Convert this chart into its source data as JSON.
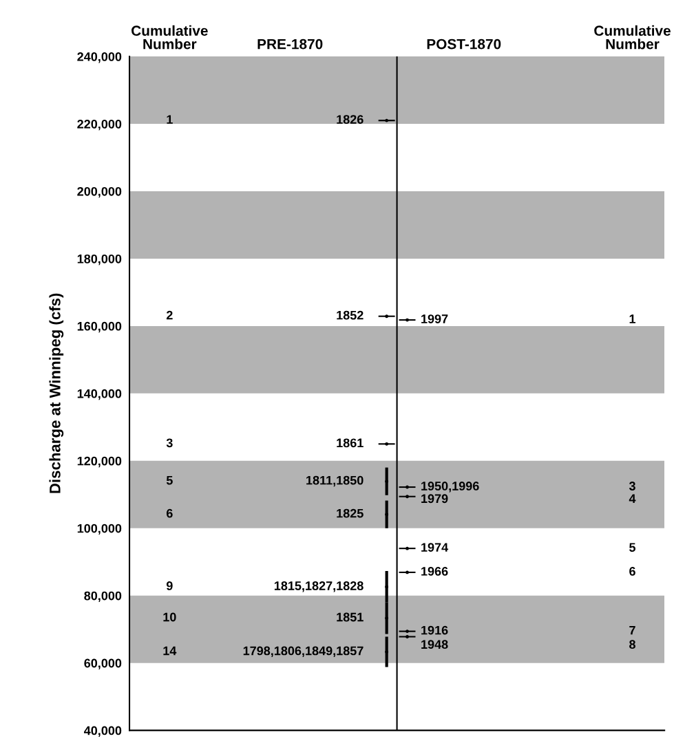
{
  "chart_data": {
    "type": "scatter",
    "ylabel": "Discharge at Winnipeg (cfs)",
    "categories": [
      null,
      null,
      null,
      null,
      null,
      null,
      null,
      null,
      null,
      null,
      null,
      null,
      null,
      null,
      null,
      null,
      null,
      null,
      null,
      null,
      null,
      null,
      null,
      null,
      null,
      null
    ],
    "ylim": [
      40000,
      240000
    ],
    "yticks": [
      {
        "value": 40000,
        "label": "40,000"
      },
      {
        "value": 60000,
        "label": "60,000"
      },
      {
        "value": 80000,
        "label": "80,000"
      },
      {
        "value": 100000,
        "label": "100,000"
      },
      {
        "value": 120000,
        "label": "120,000"
      },
      {
        "value": 140000,
        "label": "140,000"
      },
      {
        "value": 160000,
        "label": "160,000"
      },
      {
        "value": 180000,
        "label": "180,000"
      },
      {
        "value": 200000,
        "label": "200,000"
      },
      {
        "value": 220000,
        "label": "220,000"
      },
      {
        "value": 240000,
        "label": "240,000"
      }
    ],
    "bands": [
      {
        "axis": "y",
        "from": 220000,
        "to": 240000,
        "color": "#b3b3b3"
      },
      {
        "axis": "y",
        "from": 180000,
        "to": 200000,
        "color": "#b3b3b3"
      },
      {
        "axis": "y",
        "from": 140000,
        "to": 160000,
        "color": "#b3b3b3"
      },
      {
        "axis": "y",
        "from": 100000,
        "to": 120000,
        "color": "#b3b3b3"
      },
      {
        "axis": "y",
        "from": 60000,
        "to": 80000,
        "color": "#b3b3b3"
      }
    ],
    "grid": false,
    "series": [
      {
        "color": "#000000",
        "values": [
          null,
          null,
          null,
          null,
          null,
          null,
          null,
          null,
          null,
          null,
          null,
          null,
          221000,
          161800,
          null,
          null,
          null,
          null,
          null,
          null,
          null,
          null,
          null,
          null,
          null,
          null
        ]
      },
      {
        "color": "#000000",
        "values": [
          null,
          null,
          null,
          null,
          null,
          null,
          null,
          null,
          null,
          null,
          null,
          null,
          162900,
          112200,
          null,
          null,
          null,
          null,
          null,
          null,
          null,
          null,
          null,
          null,
          null,
          null
        ]
      },
      {
        "color": "#000000",
        "values": [
          null,
          null,
          null,
          null,
          null,
          null,
          null,
          null,
          null,
          null,
          null,
          null,
          125000,
          109400,
          null,
          null,
          null,
          null,
          null,
          null,
          null,
          null,
          null,
          null,
          null,
          null
        ]
      },
      {
        "color": "#000000",
        "values": [
          null,
          null,
          null,
          null,
          null,
          null,
          null,
          null,
          null,
          null,
          null,
          null,
          113900,
          94000,
          null,
          null,
          null,
          null,
          null,
          null,
          null,
          null,
          null,
          null,
          null,
          null
        ],
        "errors": [
          null,
          null,
          null,
          null,
          null,
          null,
          null,
          null,
          null,
          null,
          null,
          null,
          [
            109800,
            118000
          ],
          null,
          null,
          null,
          null,
          null,
          null,
          null,
          null,
          null,
          null,
          null,
          null,
          null
        ]
      },
      {
        "color": "#000000",
        "values": [
          null,
          null,
          null,
          null,
          null,
          null,
          null,
          null,
          null,
          null,
          null,
          null,
          104100,
          86900,
          null,
          null,
          null,
          null,
          null,
          null,
          null,
          null,
          null,
          null,
          null,
          null
        ],
        "errors": [
          null,
          null,
          null,
          null,
          null,
          null,
          null,
          null,
          null,
          null,
          null,
          null,
          [
            100000,
            108200
          ],
          null,
          null,
          null,
          null,
          null,
          null,
          null,
          null,
          null,
          null,
          null,
          null,
          null
        ]
      },
      {
        "color": "#000000",
        "values": [
          null,
          null,
          null,
          null,
          null,
          null,
          null,
          null,
          null,
          null,
          null,
          null,
          82600,
          69400,
          null,
          null,
          null,
          null,
          null,
          null,
          null,
          null,
          null,
          null,
          null,
          null
        ],
        "errors": [
          null,
          null,
          null,
          null,
          null,
          null,
          null,
          null,
          null,
          null,
          null,
          null,
          [
            78000,
            87300
          ],
          null,
          null,
          null,
          null,
          null,
          null,
          null,
          null,
          null,
          null,
          null,
          null,
          null
        ]
      },
      {
        "color": "#000000",
        "values": [
          null,
          null,
          null,
          null,
          null,
          null,
          null,
          null,
          null,
          null,
          null,
          null,
          73300,
          67800,
          null,
          null,
          null,
          null,
          null,
          null,
          null,
          null,
          null,
          null,
          null,
          null
        ],
        "errors": [
          null,
          null,
          null,
          null,
          null,
          null,
          null,
          null,
          null,
          null,
          null,
          null,
          [
            68600,
            78000
          ],
          null,
          null,
          null,
          null,
          null,
          null,
          null,
          null,
          null,
          null,
          null,
          null,
          null
        ]
      },
      {
        "color": "#000000",
        "values": [
          null,
          null,
          null,
          null,
          null,
          null,
          null,
          null,
          null,
          null,
          null,
          null,
          63300,
          null,
          null,
          null,
          null,
          null,
          null,
          null,
          null,
          null,
          null,
          null,
          null,
          null
        ],
        "errors": [
          null,
          null,
          null,
          null,
          null,
          null,
          null,
          null,
          null,
          null,
          null,
          null,
          [
            58800,
            67800
          ],
          null,
          null,
          null,
          null,
          null,
          null,
          null,
          null,
          null,
          null,
          null,
          null,
          null
        ]
      }
    ],
    "annotations": [
      "Cumulative\nNumber",
      "PRE-1870",
      "POST-1870",
      "Cumulative\nNumber",
      "1826",
      "1997",
      "1852",
      "1950,1996",
      "1861",
      "1979",
      "1811,1850",
      "1974",
      "1825",
      "1966",
      "1815,1827,1828",
      "1916",
      "1851",
      "1948",
      "1798,1806,1849,1857",
      "1",
      "1",
      "2",
      "3",
      "3",
      "4",
      "5",
      "5",
      "6",
      "6",
      "9",
      "7",
      "10",
      "8",
      "14"
    ]
  }
}
